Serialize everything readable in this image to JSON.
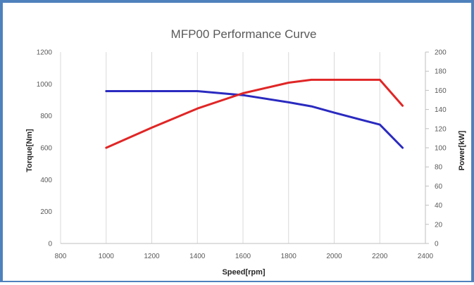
{
  "chart_data": {
    "type": "line",
    "title": "MFP00 Performance Curve",
    "xlabel": "Speed[rpm]",
    "ylabel": "Torque[Nm]",
    "y2label": "Power[kW]",
    "xlim": [
      800,
      2400
    ],
    "ylim": [
      0,
      1200
    ],
    "y2lim": [
      0,
      200
    ],
    "xticks": [
      "800",
      "1000",
      "1200",
      "1400",
      "1600",
      "1800",
      "2000",
      "2200",
      "2400"
    ],
    "yticks": [
      "0",
      "200",
      "400",
      "600",
      "800",
      "1000",
      "1200"
    ],
    "y2ticks": [
      "0",
      "20",
      "40",
      "60",
      "80",
      "100",
      "120",
      "140",
      "160",
      "180",
      "200"
    ],
    "grid": "vertical",
    "series": [
      {
        "axis": "left",
        "color": "#2a2ac0",
        "x": [
          1000,
          1200,
          1400,
          1600,
          1800,
          1900,
          2000,
          2200,
          2300
        ],
        "values": [
          955,
          955,
          955,
          930,
          885,
          860,
          820,
          745,
          600
        ]
      },
      {
        "axis": "right",
        "color": "#e02626",
        "x": [
          1000,
          1200,
          1400,
          1600,
          1800,
          1900,
          2000,
          2200,
          2300
        ],
        "values": [
          100,
          121,
          141,
          157,
          168,
          171,
          171,
          171,
          144
        ]
      }
    ]
  }
}
